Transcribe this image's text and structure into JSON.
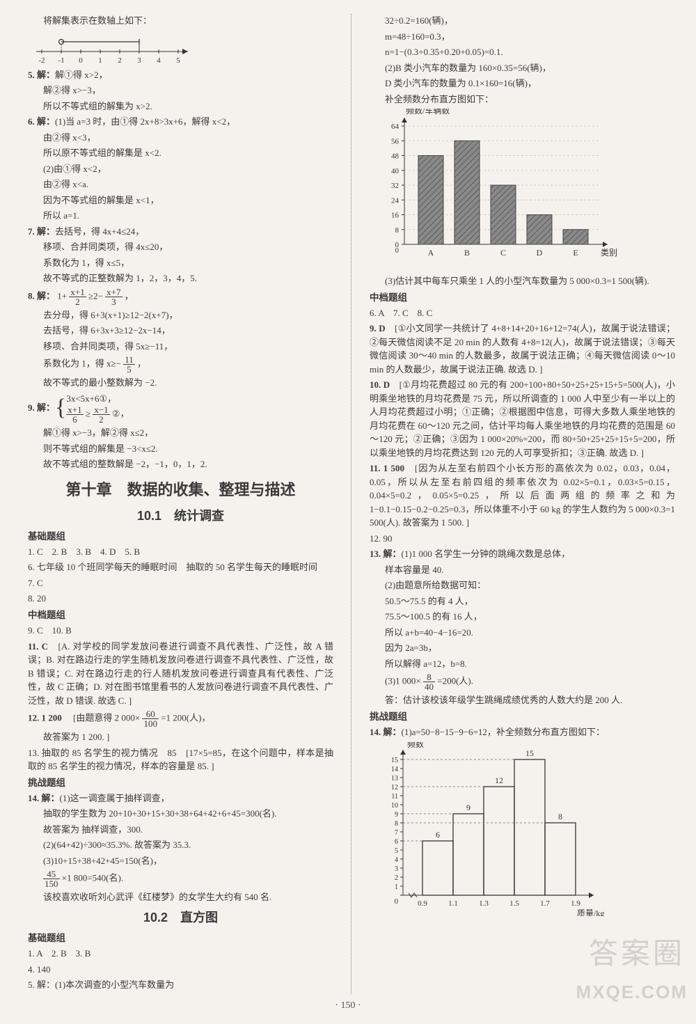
{
  "footer_page": "· 150 ·",
  "watermark_cn": "答案圈",
  "watermark_en": "MXQE.COM",
  "left": {
    "intro": "将解集表示在数轴上如下：",
    "numline": {
      "ticks": [
        "-2",
        "-1",
        "0",
        "1",
        "2",
        "3",
        "4",
        "5"
      ],
      "open_at": -1,
      "bracket_at": 3
    },
    "q5": {
      "head": "5. 解：",
      "l1": "解①得 x>2，",
      "l2": "解②得 x>−3，",
      "l3": "所以不等式组的解集为 x>2."
    },
    "q6": {
      "head": "6. 解：",
      "l1": "(1)当 a=3 时，由①得 2x+8>3x+6，解得 x<2，",
      "l2": "由②得 x<3，",
      "l3": "所以原不等式组的解集是 x<2.",
      "l4": "(2)由①得 x<2，",
      "l5": "由②得 x<a.",
      "l6": "因为不等式组的解集是 x<1，",
      "l7": "所以 a=1."
    },
    "q7": {
      "head": "7. 解：",
      "l1": "去括号，得 4x+4≤24，",
      "l2": "移项、合并同类项，得 4x≤20，",
      "l3": "系数化为 1，得 x≤5，",
      "l4": "故不等式的正整数解为 1，2，3，4，5."
    },
    "q8": {
      "head": "8. 解：",
      "expr_a": "1+",
      "expr_n1": "x+1",
      "expr_d1": "2",
      "expr_mid": "≥2−",
      "expr_n2": "x+7",
      "expr_d2": "3",
      "expr_end": "，",
      "l2": "去分母，得 6+3(x+1)≥12−2(x+7)，",
      "l3": "去括号，得 6+3x+3≥12−2x−14，",
      "l4": "移项、合并同类项，得 5x≥−11，",
      "l5a": "系数化为 1，得 x≥−",
      "l5n": "11",
      "l5d": "5",
      "l5b": "，",
      "l6": "故不等式的最小整数解为 −2."
    },
    "q9": {
      "head": "9. 解：",
      "brace_top": "3x<5x+6①，",
      "brace_bot_a": "",
      "bn1": "x+1",
      "bd1": "6",
      "bmid": "≥",
      "bn2": "x−1",
      "bd2": "2",
      "bend": "②，",
      "l2": "解①得 x>−3，解②得 x≤2，",
      "l3": "则不等式组的解集是 −3<x≤2.",
      "l4": "故不等式组的整数解是 −2，−1，0，1，2."
    },
    "chapter": "第十章　数据的收集、整理与描述",
    "sec101": "10.1　统计调查",
    "group_basic": "基础题组",
    "basic_answers": "1. C　2. B　3. B　4. D　5. B",
    "q6b": "6. 七年级 10 个班同学每天的睡眠时间　抽取的 50 名学生每天的睡眠时间",
    "q7b": "7. C",
    "q8b": "8. 20",
    "group_mid": "中档题组",
    "mid_answers": "9. C　10. B",
    "q11": {
      "head": "11. C　",
      "body": "[A. 对学校的同学发放问卷进行调查不具代表性、广泛性，故 A 错误；B. 对在路边行走的学生随机发放问卷进行调查不具代表性、广泛性，故 B 错误；C. 对在路边行走的行人随机发放问卷进行调查具有代表性、广泛性，故 C 正确；D. 对在图书馆里看书的人发放问卷进行调查不具代表性、广泛性，故 D 错误. 故选 C. ]"
    },
    "q12": {
      "head": "12. 1 200　",
      "body_a": "[由题意得 2 000×",
      "body_n": "60",
      "body_d": "100",
      "body_b": "=1 200(人)，",
      "tail": "故答案为 1 200. ]"
    },
    "q13": "13. 抽取的 85 名学生的视力情况　85　[17×5=85，在这个问题中，样本是抽取的 85 名学生的视力情况，样本的容量是 85. ]",
    "group_chal": "挑战题组",
    "q14": {
      "head": "14. 解：",
      "l1": "(1)这一调查属于抽样调查，",
      "l2": "抽取的学生数为 20+10+30+15+30+38+64+42+6+45=300(名).",
      "l3": "故答案为 抽样调查，300.",
      "l4": "(2)(64+42)÷300≈35.3%. 故答案为 35.3.",
      "l5": "(3)10+15+38+42+45=150(名)，",
      "l6a": "",
      "l6n": "45",
      "l6d": "150",
      "l6b": "×1 800=540(名).",
      "l7": "该校喜欢收听刘心武评《红楼梦》的女学生大约有 540 名."
    },
    "sec102": "10.2　直方图",
    "group_basic2": "基础题组",
    "basic2_answers": "1. A　2. B　3. B",
    "q4c": "4. 140",
    "q5c": "5. 解：(1)本次调查的小型汽车数量为"
  },
  "right": {
    "top": {
      "l1": "32÷0.2=160(辆)，",
      "l2": "m=48÷160=0.3，",
      "l3": "n=1−(0.3+0.35+0.20+0.05)=0.1.",
      "l4": "(2)B 类小汽车的数量为 160×0.35=56(辆)，",
      "l5": "D 类小汽车的数量为 0.1×160=16(辆)，",
      "l6": "补全频数分布直方图如下："
    },
    "chart1": {
      "y_label": "频数/车辆数",
      "x_label": "类别",
      "y_ticks": [
        0,
        8,
        16,
        24,
        32,
        40,
        48,
        56,
        64
      ],
      "categories": [
        "A",
        "B",
        "C",
        "D",
        "E"
      ],
      "values": [
        48,
        56,
        32,
        16,
        8
      ],
      "bar_color": "#6b6b6b",
      "hatch": true,
      "axis_color": "#333",
      "bg": "#f5f2ed"
    },
    "l_after_chart1": "(3)估计其中每车只乘坐 1 人的小型汽车数量为 5 000×0.3=1 500(辆).",
    "group_mid": "中档题组",
    "mid_answers": "6. A　7. C　8. C",
    "q9": {
      "head": "9. D　",
      "body": "[①小文同学一共统计了 4+8+14+20+16+12=74(人)，故属于说法错误；②每天微信阅读不足 20 min 的人数有 4+8=12(人)，故属于说法错误；③每天微信阅读 30～40 min 的人数最多，故属于说法正确；④每天微信阅读 0～10 min 的人数最少，故属于说法正确. 故选 D. ]"
    },
    "q10": {
      "head": "10. D　",
      "body": "[①月均花费超过 80 元的有 200+100+80+50+25+25+15+5=500(人)，小明乘坐地铁的月均花费是 75 元，所以所调查的 1 000 人中至少有一半以上的人月均花费超过小明；①正确；②根据图中信息，可得大多数人乘坐地铁的月均花费在 60～120 元之间，估计平均每人乘坐地铁的月均花费的范围是 60～120 元；②正确；③因为 1 000×20%=200，而 80+50+25+25+15+5=200，所以乘坐地铁的月均花费达到 120 元的人可享受折扣；③正确. 故选 D. ]"
    },
    "q11": {
      "head": "11. 1 500　",
      "body": "[因为从左至右前四个小长方形的高依次为 0.02，0.03，0.04，0.05，所以从左至右前四组的频率依次为 0.02×5=0.1，0.03×5=0.15，0.04×5=0.2，0.05×5=0.25，所以后面两组的频率之和为 1−0.1−0.15−0.2−0.25=0.3，所以体重不小于 60 kg 的学生人数约为 5 000×0.3=1 500(人). 故答案为 1 500. ]"
    },
    "q12": "12. 90",
    "q13": {
      "head": "13. 解：",
      "l1": "(1)1 000 名学生一分钟的跳绳次数是总体，",
      "l2": "样本容量是 40.",
      "l3": "(2)由题意所给数据可知：",
      "l4": "50.5～75.5 的有 4 人，",
      "l5": "75.5～100.5 的有 16 人，",
      "l6": "所以 a+b=40−4−16=20.",
      "l7": "因为 2a=3b，",
      "l8": "所以解得 a=12，b=8.",
      "l9a": "(3)1 000×",
      "l9n": "8",
      "l9d": "40",
      "l9b": "=200(人).",
      "l10": "答：估计该校该年级学生跳绳成绩优秀的人数大约是 200 人."
    },
    "group_chal": "挑战题组",
    "q14": {
      "head": "14. 解：",
      "l1": "(1)a=50−8−15−9−6=12，补全频数分布直方图如下："
    },
    "chart2": {
      "y_label": "频数",
      "x_label": "质量/kg",
      "y_ticks": [
        0,
        1,
        2,
        3,
        4,
        5,
        6,
        7,
        8,
        9,
        10,
        11,
        12,
        13,
        14,
        15
      ],
      "x_ticks": [
        "0.9",
        "1.1",
        "1.3",
        "1.5",
        "1.7",
        "1.9"
      ],
      "values": [
        6,
        9,
        12,
        15,
        8
      ],
      "value_labels": [
        "6",
        "9",
        "12",
        "15",
        "8"
      ],
      "bar_color": "none",
      "stroke": "#333",
      "axis_color": "#333"
    }
  }
}
